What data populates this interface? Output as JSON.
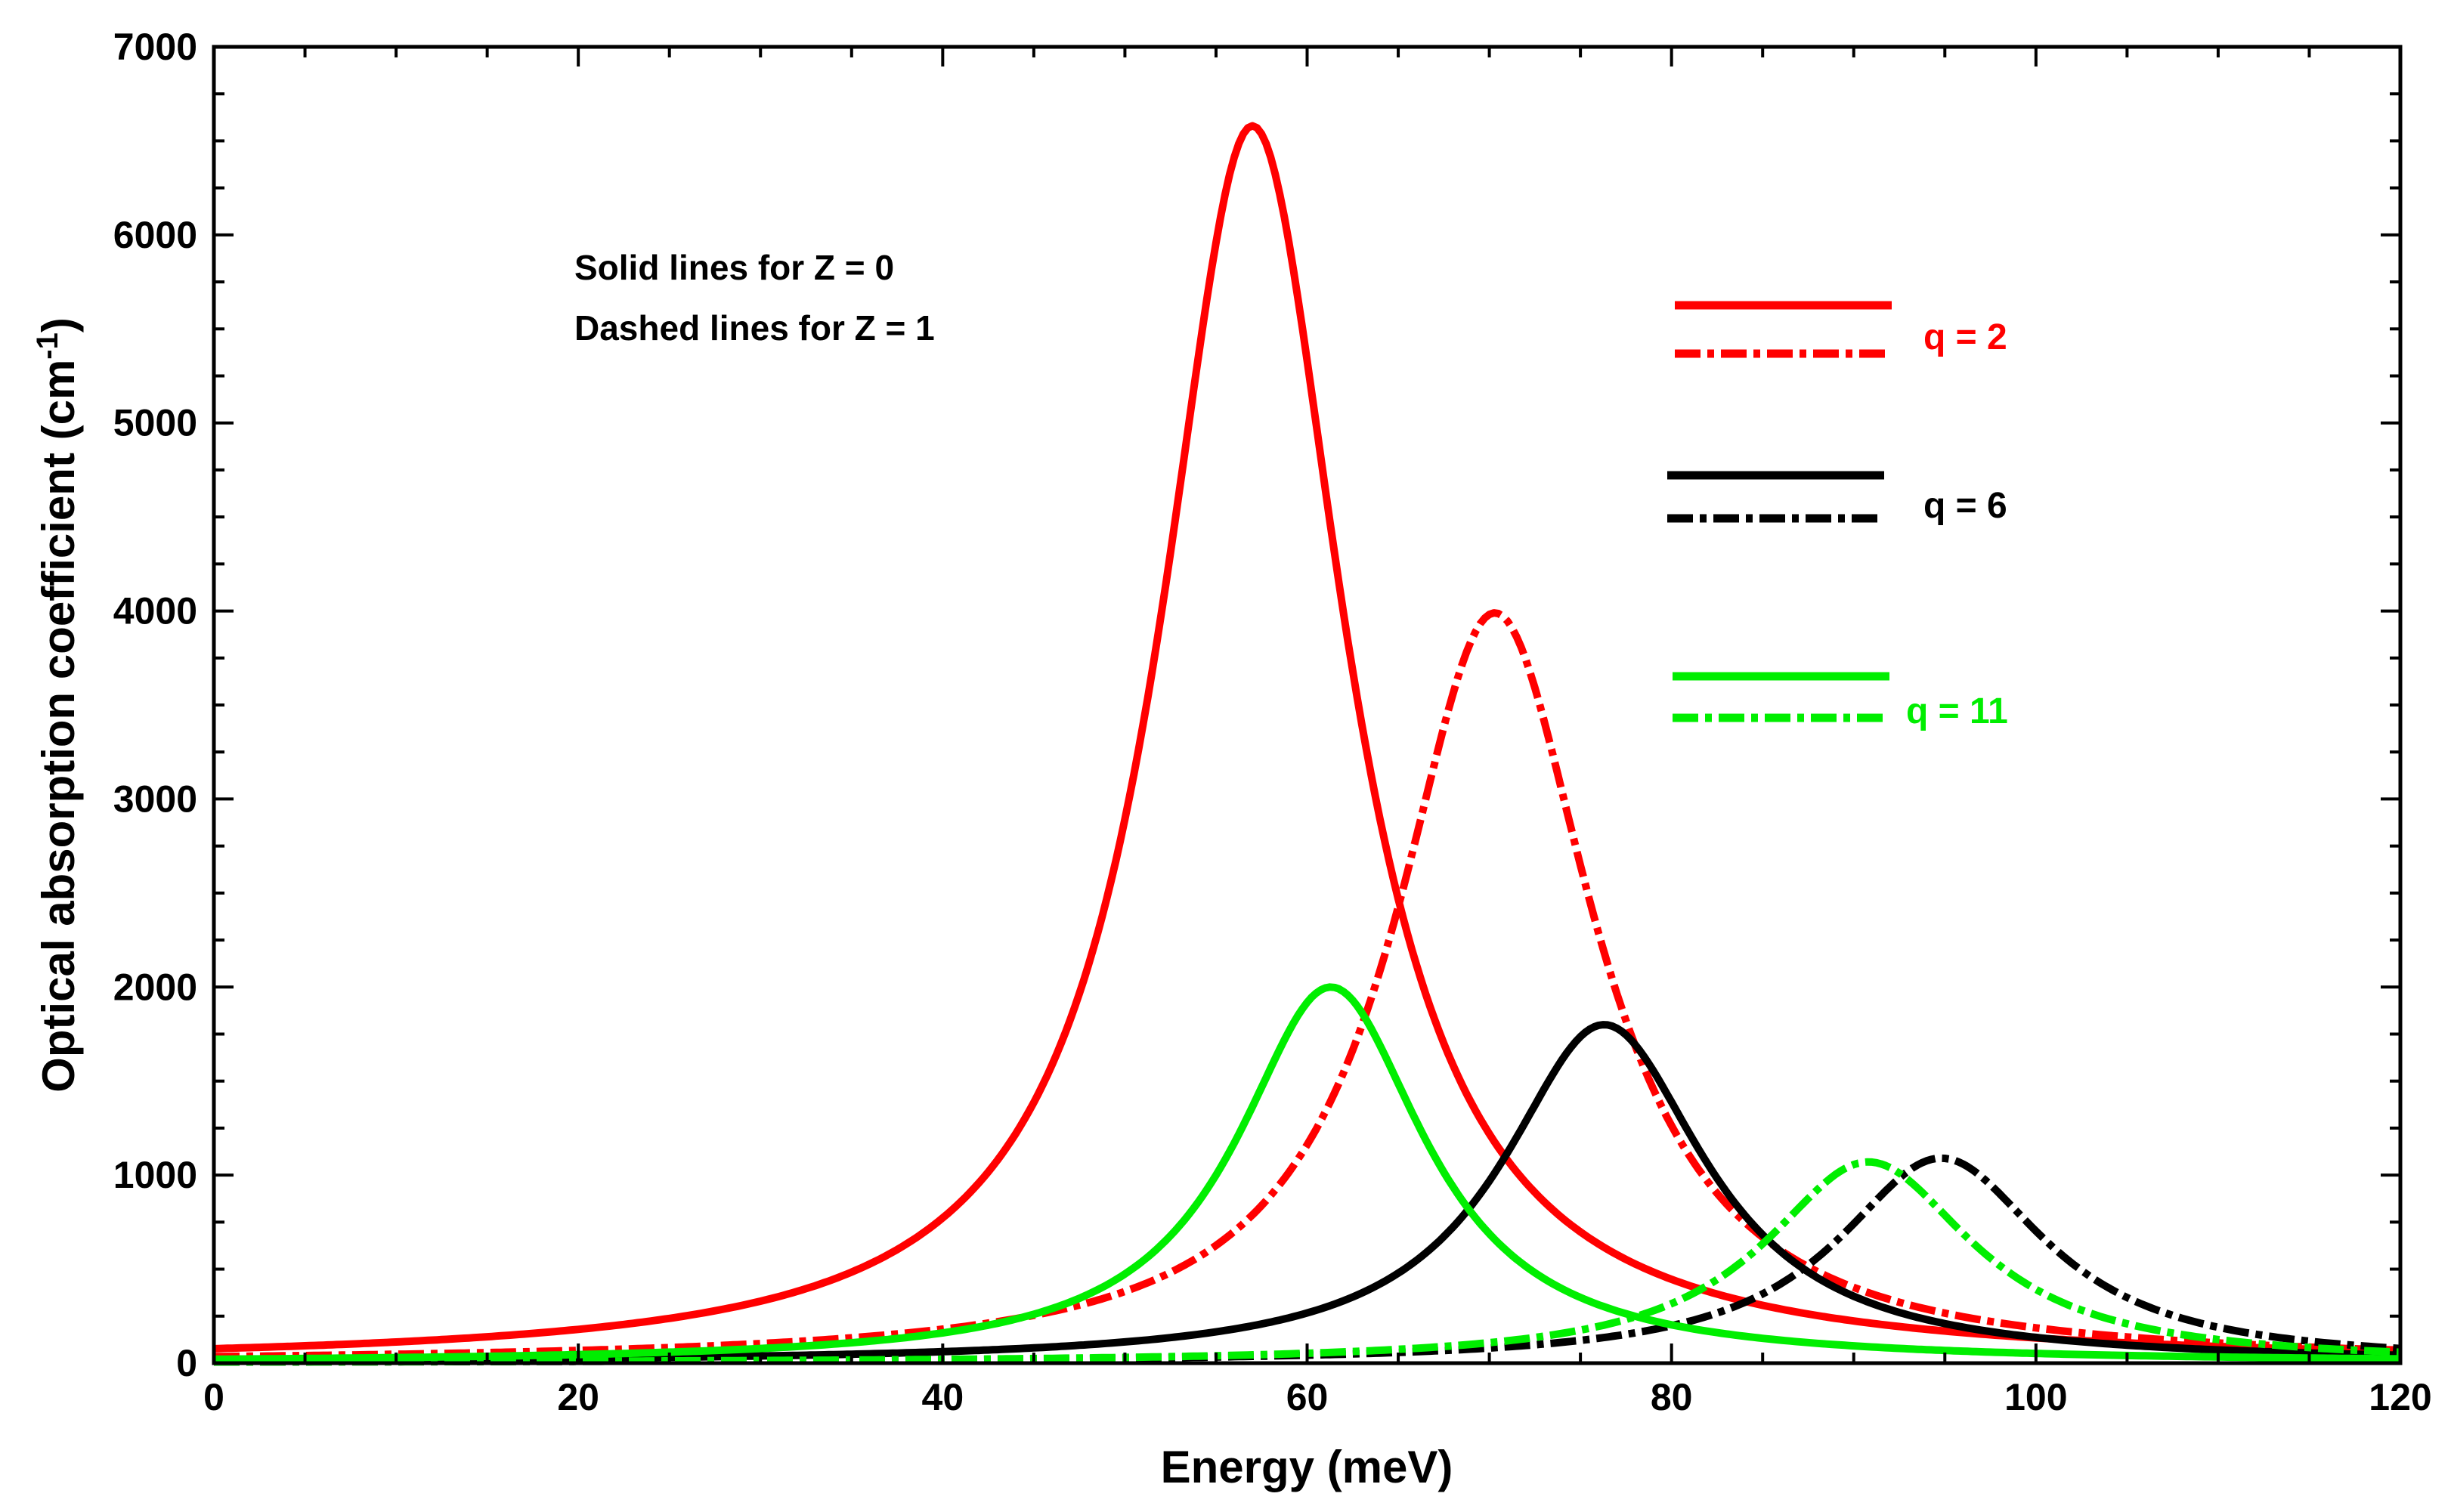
{
  "chart_data": {
    "type": "line",
    "title": "",
    "xlabel": "Energy (meV)",
    "ylabel": "Optical absorption coefficient (cm",
    "ylabel_sup": "-1",
    "ylabel_close": ")",
    "xlim": [
      0,
      120
    ],
    "ylim": [
      0,
      7000
    ],
    "xticks": [
      0,
      20,
      40,
      60,
      80,
      100,
      120
    ],
    "yticks": [
      0,
      1000,
      2000,
      3000,
      4000,
      5000,
      6000,
      7000
    ],
    "xtick_labels": [
      "0",
      "20",
      "40",
      "60",
      "80",
      "100",
      "120"
    ],
    "ytick_labels": [
      "0",
      "1000",
      "2000",
      "3000",
      "4000",
      "5000",
      "6000",
      "7000"
    ],
    "grid": false,
    "legend_position": "top-right",
    "annotations": [
      "Solid lines for Z = 0",
      "Dashed lines for Z = 1"
    ],
    "legend": [
      {
        "label": "q = 2",
        "color": "#ff0000"
      },
      {
        "label": "q = 6",
        "color": "#000000"
      },
      {
        "label": "q = 11",
        "color": "#00ee00"
      }
    ],
    "series": [
      {
        "name": "q = 2, Z = 0",
        "q": 2,
        "Z": 0,
        "style": "solid",
        "color": "#ff0000",
        "peak_energy": 57,
        "peak_value": 6580,
        "half_width": 6.2
      },
      {
        "name": "q = 2, Z = 1",
        "q": 2,
        "Z": 1,
        "style": "dashdot",
        "color": "#ff0000",
        "peak_energy": 70.3,
        "peak_value": 3990,
        "half_width": 6.6
      },
      {
        "name": "q = 6, Z = 0",
        "q": 6,
        "Z": 0,
        "style": "solid",
        "color": "#000000",
        "peak_energy": 76.3,
        "peak_value": 1800,
        "half_width": 6.8
      },
      {
        "name": "q = 6, Z = 1",
        "q": 6,
        "Z": 1,
        "style": "dashdot",
        "color": "#000000",
        "peak_energy": 94.8,
        "peak_value": 1090,
        "half_width": 7.0
      },
      {
        "name": "q = 11, Z = 0",
        "q": 11,
        "Z": 0,
        "style": "solid",
        "color": "#00ee00",
        "peak_energy": 61.3,
        "peak_value": 2000,
        "half_width": 6.3
      },
      {
        "name": "q = 11, Z = 1",
        "q": 11,
        "Z": 1,
        "style": "dashdot",
        "color": "#00ee00",
        "peak_energy": 90.8,
        "peak_value": 1070,
        "half_width": 7.0
      }
    ]
  }
}
